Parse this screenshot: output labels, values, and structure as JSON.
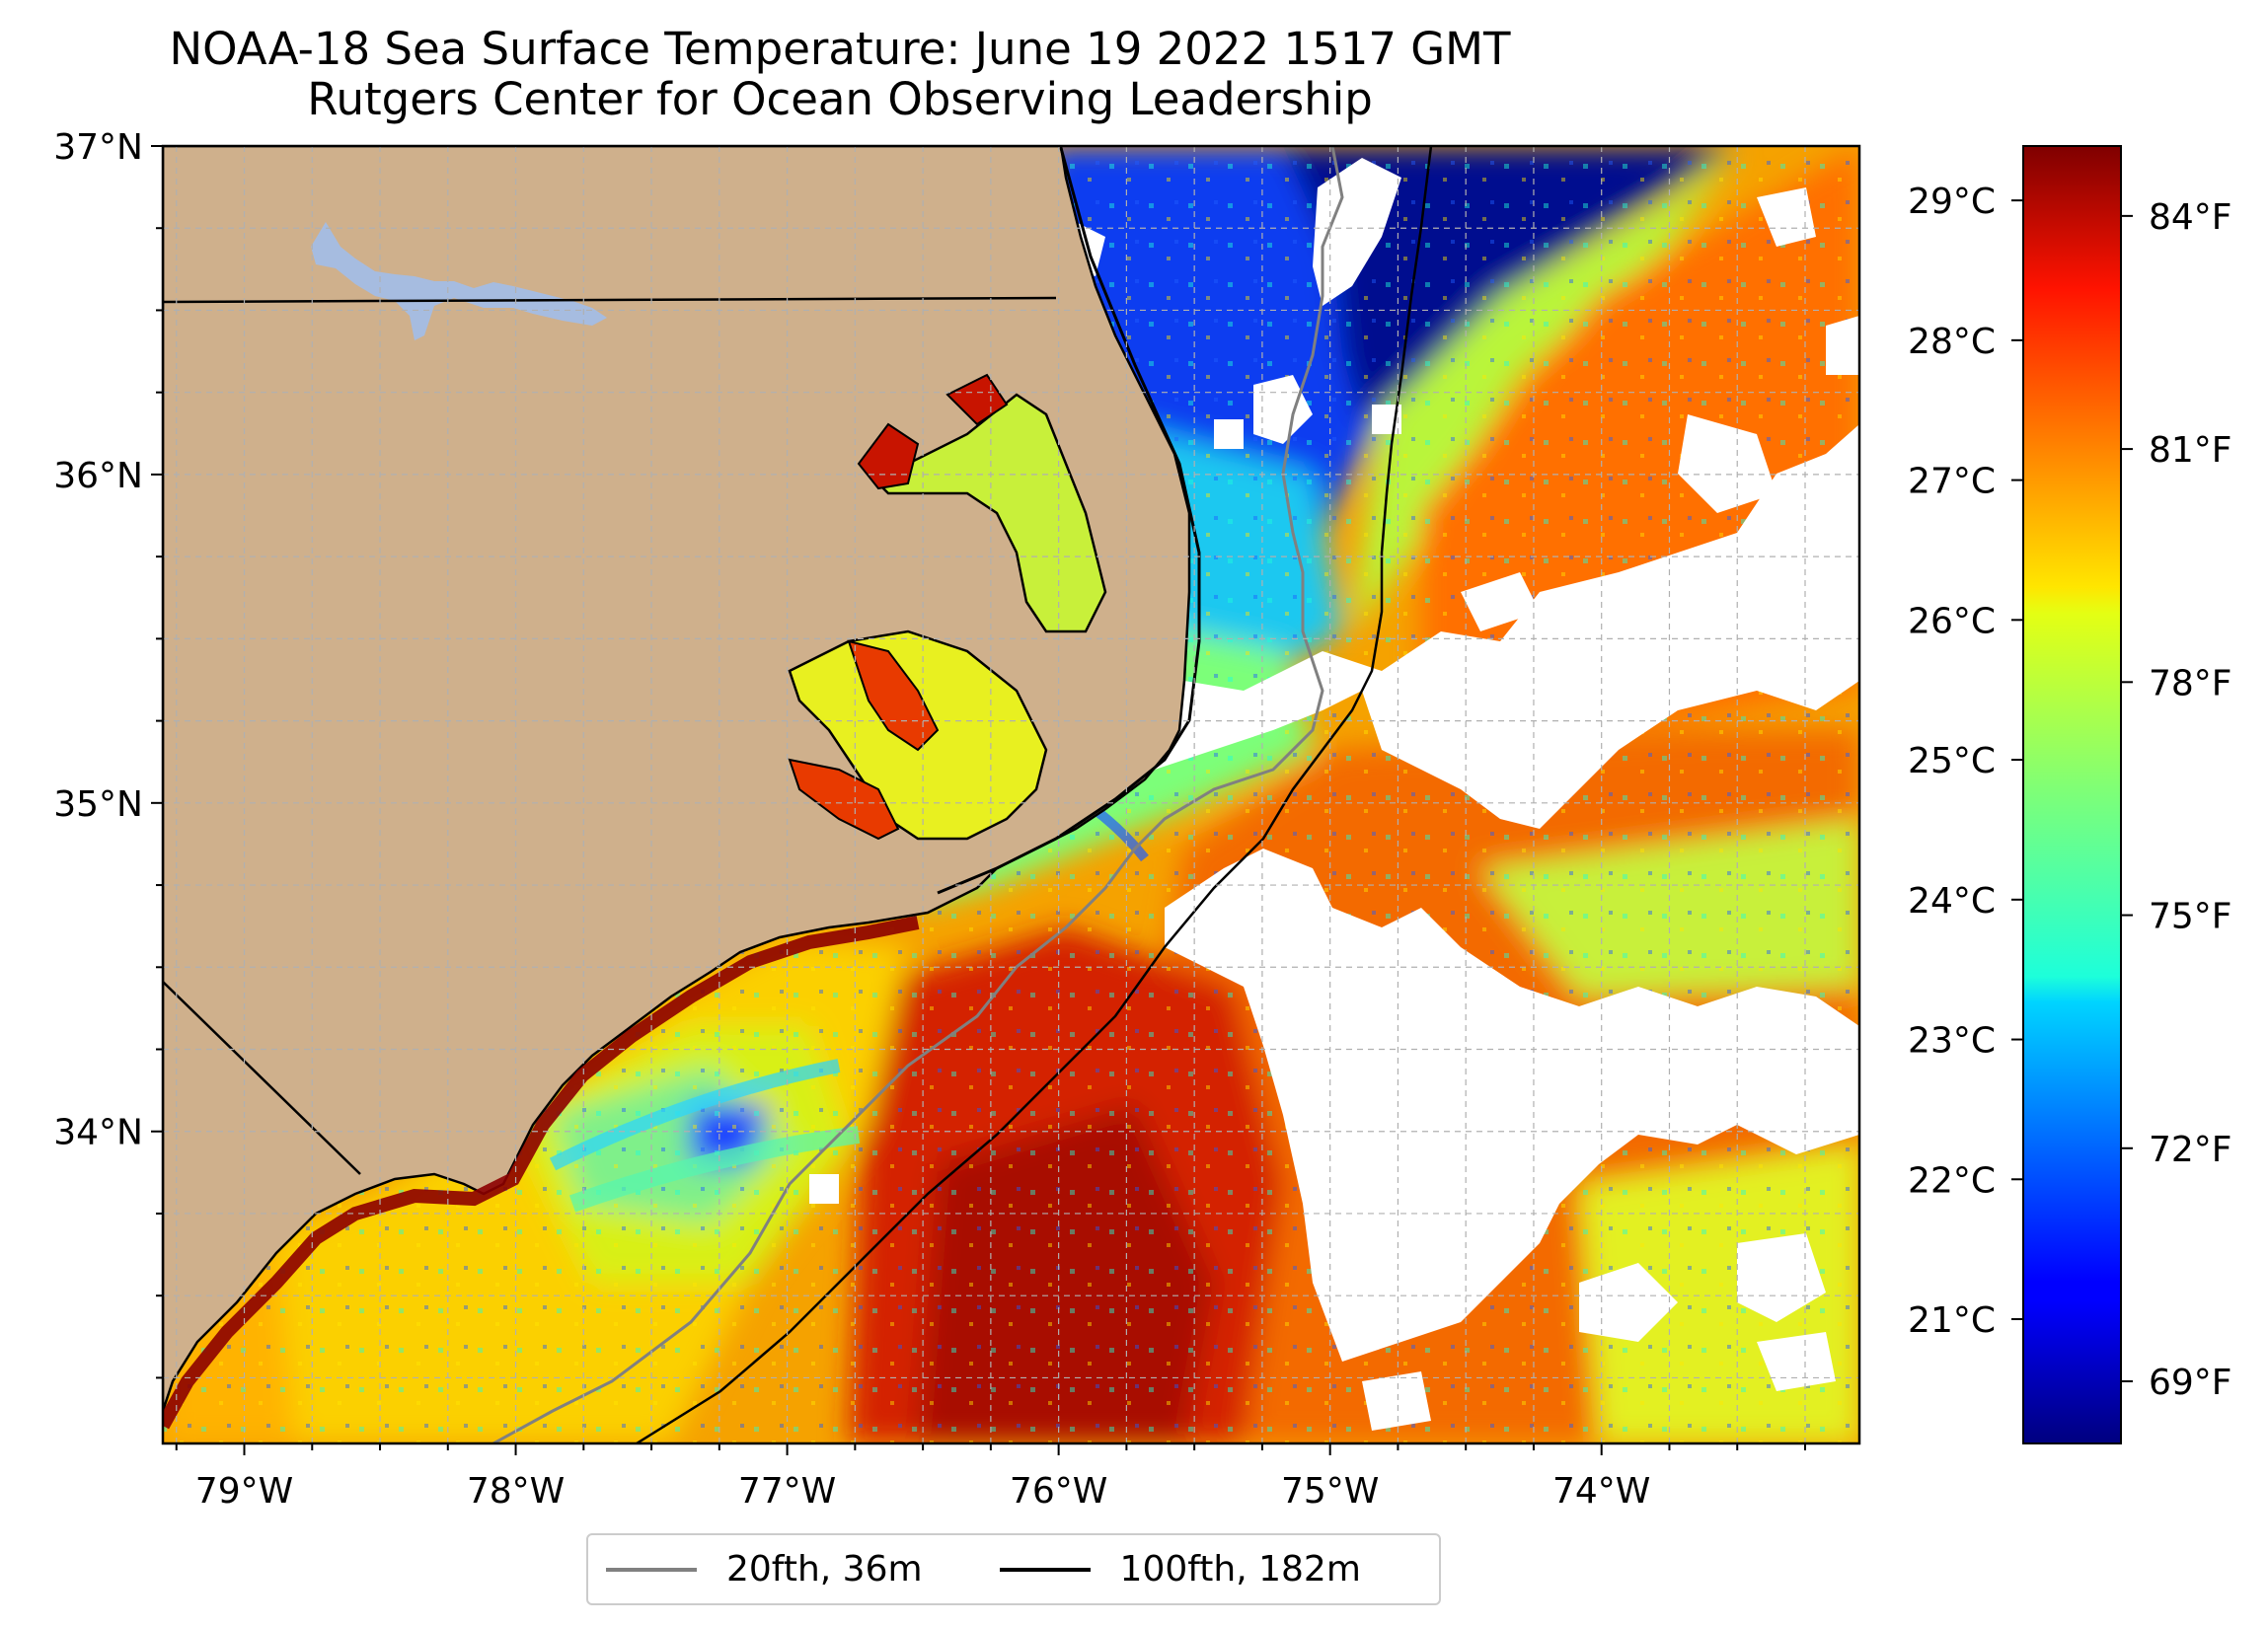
{
  "title": {
    "line1": "NOAA-18 Sea Surface Temperature: June 19 2022 1517 GMT",
    "line2": "Rutgers Center for Ocean Observing Leadership"
  },
  "map": {
    "lon_range": [
      -79.3,
      -73.05
    ],
    "lat_range": [
      33.05,
      37.0
    ],
    "lon_ticks": [
      {
        "value": -79,
        "label": "79°W"
      },
      {
        "value": -78,
        "label": "78°W"
      },
      {
        "value": -77,
        "label": "77°W"
      },
      {
        "value": -76,
        "label": "76°W"
      },
      {
        "value": -75,
        "label": "75°W"
      },
      {
        "value": -74,
        "label": "74°W"
      }
    ],
    "lat_ticks": [
      {
        "value": 37,
        "label": "37°N"
      },
      {
        "value": 36,
        "label": "36°N"
      },
      {
        "value": 35,
        "label": "35°N"
      },
      {
        "value": 34,
        "label": "34°N"
      }
    ],
    "colors": {
      "land": "#cfb08c",
      "lake": "#a6bce0",
      "gridline": "#b0b0b0",
      "isobath_20": "#808080",
      "isobath_100": "#000000",
      "cloud": "#ffffff"
    }
  },
  "colorbar": {
    "cmap": "jet",
    "celsius_ticks": [
      {
        "value": 29,
        "label": "29°C"
      },
      {
        "value": 28,
        "label": "28°C"
      },
      {
        "value": 27,
        "label": "27°C"
      },
      {
        "value": 26,
        "label": "26°C"
      },
      {
        "value": 25,
        "label": "25°C"
      },
      {
        "value": 24,
        "label": "24°C"
      },
      {
        "value": 23,
        "label": "23°C"
      },
      {
        "value": 22,
        "label": "22°C"
      },
      {
        "value": 21,
        "label": "21°C"
      }
    ],
    "fahrenheit_ticks": [
      {
        "value": 84,
        "label": "84°F"
      },
      {
        "value": 81,
        "label": "81°F"
      },
      {
        "value": 78,
        "label": "78°F"
      },
      {
        "value": 75,
        "label": "75°F"
      },
      {
        "value": 72,
        "label": "72°F"
      },
      {
        "value": 69,
        "label": "69°F"
      }
    ]
  },
  "legend": {
    "item1": {
      "label": "20fth, 36m",
      "color": "#808080"
    },
    "item2": {
      "label": "100fth, 182m",
      "color": "#000000"
    }
  }
}
